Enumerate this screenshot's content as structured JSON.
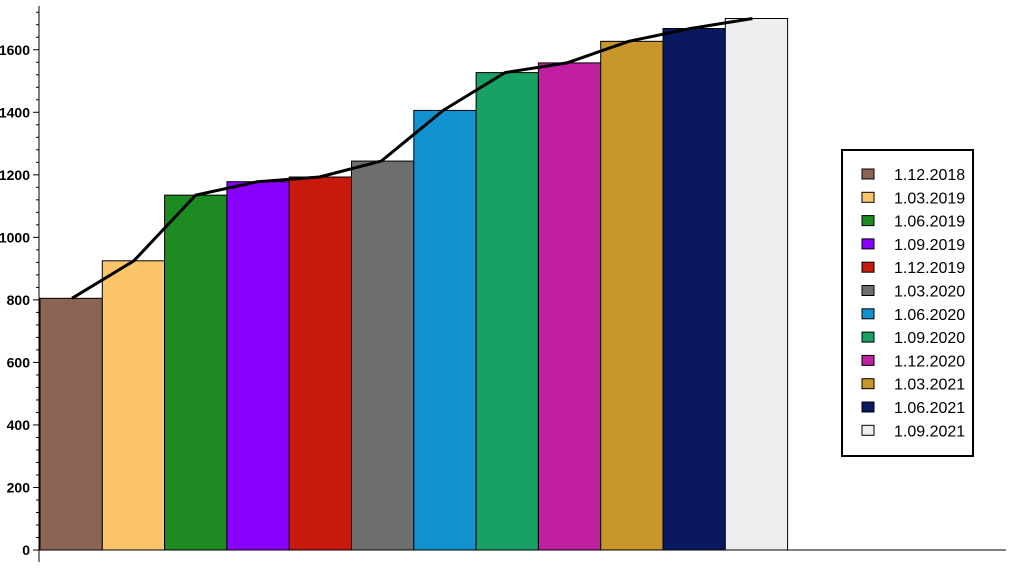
{
  "chart_data": {
    "type": "bar",
    "categories": [
      "1.12.2018",
      "1.03.2019",
      "1.06.2019",
      "1.09.2019",
      "1.12.2019",
      "1.03.2020",
      "1.06.2020",
      "1.09.2020",
      "1.12.2020",
      "1.03.2021",
      "1.06.2021",
      "1.09.2021"
    ],
    "values": [
      805,
      925,
      1135,
      1178,
      1193,
      1244,
      1406,
      1527,
      1558,
      1627,
      1668,
      1700
    ],
    "colors": [
      "#8b6454",
      "#fcc56a",
      "#1d8a22",
      "#8a00ff",
      "#c81a0c",
      "#6e6e6e",
      "#1192ce",
      "#19a064",
      "#c020a0",
      "#c8962a",
      "#0a1862",
      "#eeeeee"
    ],
    "trend_line": {
      "color": "#000000",
      "values": [
        805,
        925,
        1135,
        1178,
        1193,
        1244,
        1406,
        1527,
        1558,
        1627,
        1668,
        1700
      ]
    },
    "title": "",
    "xlabel": "",
    "ylabel": "",
    "ylim": [
      0,
      1740
    ],
    "yticks": [
      0,
      200,
      400,
      600,
      800,
      1000,
      1200,
      1400,
      1600
    ],
    "ytick_labels": [
      "0",
      "200",
      "400",
      "600",
      "800",
      "1000",
      "1200",
      "1400",
      "1600"
    ],
    "grid": false,
    "legend_position": "right",
    "legend": [
      "1.12.2018",
      "1.03.2019",
      "1.06.2019",
      "1.09.2019",
      "1.12.2019",
      "1.03.2020",
      "1.06.2020",
      "1.09.2020",
      "1.12.2020",
      "1.03.2021",
      "1.06.2021",
      "1.09.2021"
    ]
  }
}
